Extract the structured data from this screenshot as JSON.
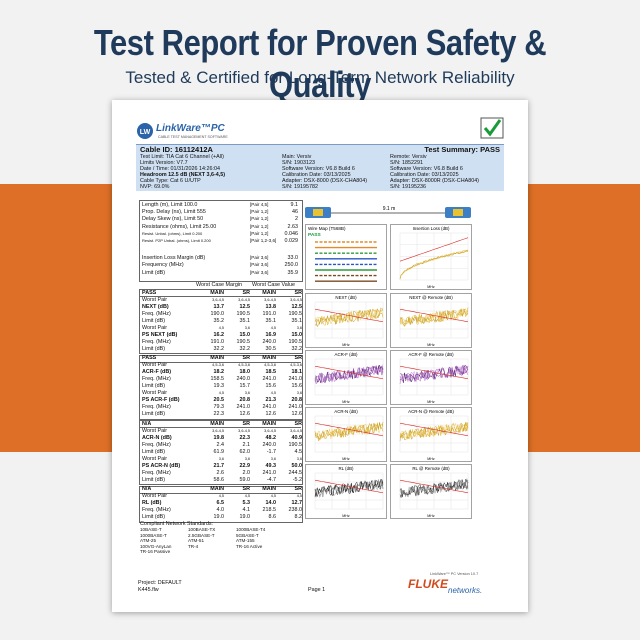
{
  "header": {
    "title": "Test Report for Proven Safety & Quality",
    "subtitle": "Tested & Certified for Long-Term Network Reliability"
  },
  "report": {
    "logo": "LinkWare™PC",
    "logo_sub": "CABLE TEST MANAGEMENT SOFTWARE",
    "cable_id": "Cable ID: 16112412A",
    "summary": "Test Summary: PASS",
    "info_left": [
      "Test Limit: TIA Cat 6 Channel (+All)",
      "Limits Version: V7.7",
      "Date / Time: 01/31/2026 14:26:04",
      "Headroom 12.5 dB (NEXT 3,6-4,5)",
      "Cable Type: Cat 6 U/UTP",
      "NVP: 69.0%"
    ],
    "info_mid": [
      "Main: Versiv",
      "S/N: 1903123",
      "Software Version: V6.8 Build 6",
      "Calibration Date: 03/13/2025",
      "Adapter: DSX-8000 (DSX-CHA804)",
      "S/N: 19195782"
    ],
    "info_right": [
      "Remote: Versiv",
      "S/N: 1852291",
      "Software Version: V6.8 Build 6",
      "Calibration Date: 03/13/2025",
      "Adapter: DSX-8000R (DSX-CHA804)",
      "S/N: 19195236"
    ],
    "measurements": [
      [
        "Length (m), Limit 100.0",
        "[Pair 4,5]",
        "9.1"
      ],
      [
        "Prop. Delay (ns), Limit 555",
        "[Pair 1,2]",
        "46"
      ],
      [
        "Delay Skew (ns), Limit 50",
        "[Pair 1,2]",
        "2"
      ],
      [
        "Resistance (ohms), Limit 25.00",
        "[Pair 1,2]",
        "2.63"
      ],
      [
        "Resist. Unbal. (ohms), Limit 0.200",
        "[Pair 1,2]",
        "0.046"
      ],
      [
        "Resist. P2P Unbal. (ohms), Limit 0.200",
        "[Pair 1,2-3,6]",
        "0.029"
      ],
      [
        "Insertion Loss Margin (dB)",
        "[Pair 3,6]",
        "33.0"
      ],
      [
        "Frequency (MHz)",
        "[Pair 3,6]",
        "250.0"
      ],
      [
        "Limit (dB)",
        "[Pair 3,6]",
        "35.9"
      ]
    ],
    "worst_case_header": [
      "Worst Case Margin",
      "Worst Case Value"
    ],
    "blocks": [
      [
        [
          "PASS",
          "MAIN",
          "SR",
          "MAIN",
          "SR"
        ],
        [
          "Worst Pair",
          "3,6-4,5",
          "3,6-4,5",
          "3,6-4,5",
          "3,6-4,5"
        ],
        [
          "NEXT (dB)",
          "13.7",
          "12.5",
          "13.8",
          "12.5"
        ],
        [
          "Freq. (MHz)",
          "190.0",
          "190.5",
          "191.0",
          "190.5"
        ],
        [
          "Limit (dB)",
          "35.2",
          "35.1",
          "35.1",
          "35.1"
        ],
        [
          "Worst Pair",
          "4,5",
          "3,6",
          "4,5",
          "3,6"
        ],
        [
          "PS NEXT (dB)",
          "16.2",
          "15.0",
          "16.9",
          "15.0"
        ],
        [
          "Freq. (MHz)",
          "191.0",
          "190.5",
          "240.0",
          "190.5"
        ],
        [
          "Limit (dB)",
          "32.2",
          "32.2",
          "30.5",
          "32.2"
        ]
      ],
      [
        [
          "PASS",
          "MAIN",
          "SR",
          "MAIN",
          "SR"
        ],
        [
          "Worst Pair",
          "4,5-3,6",
          "4,5-3,6",
          "4,5-3,6",
          "4,5-3,6"
        ],
        [
          "ACR-F (dB)",
          "18.2",
          "18.0",
          "18.5",
          "18.1"
        ],
        [
          "Freq. (MHz)",
          "158.5",
          "240.0",
          "241.0",
          "241.0"
        ],
        [
          "Limit (dB)",
          "19.3",
          "15.7",
          "15.6",
          "15.6"
        ],
        [
          "Worst Pair",
          "4,5",
          "3,6",
          "4,5",
          "3,6"
        ],
        [
          "PS ACR-F (dB)",
          "20.5",
          "20.8",
          "21.3",
          "20.8"
        ],
        [
          "Freq. (MHz)",
          "79.3",
          "241.0",
          "241.0",
          "241.0"
        ],
        [
          "Limit (dB)",
          "22.3",
          "12.6",
          "12.6",
          "12.6"
        ]
      ],
      [
        [
          "N/A",
          "MAIN",
          "SR",
          "MAIN",
          "SR"
        ],
        [
          "Worst Pair",
          "3,6-4,5",
          "3,6-4,5",
          "3,6-4,5",
          "3,6-4,5"
        ],
        [
          "ACR-N (dB)",
          "19.8",
          "22.3",
          "48.2",
          "40.9"
        ],
        [
          "Freq. (MHz)",
          "2.4",
          "2.1",
          "240.0",
          "190.5"
        ],
        [
          "Limit (dB)",
          "61.9",
          "62.0",
          "-1.7",
          "4.5"
        ],
        [
          "Worst Pair",
          "3,6",
          "3,6",
          "3,6",
          "3,6"
        ],
        [
          "PS ACR-N (dB)",
          "21.7",
          "22.9",
          "49.3",
          "50.0"
        ],
        [
          "Freq. (MHz)",
          "2.6",
          "2.0",
          "241.0",
          "244.5"
        ],
        [
          "Limit (dB)",
          "58.6",
          "59.0",
          "-4.7",
          "-5.2"
        ]
      ],
      [
        [
          "N/A",
          "MAIN",
          "SR",
          "MAIN",
          "SR"
        ],
        [
          "Worst Pair",
          "4,5",
          "4,5",
          "4,5",
          "4,5"
        ],
        [
          "RL (dB)",
          "6.5",
          "5.3",
          "14.0",
          "12.7"
        ],
        [
          "Freq. (MHz)",
          "4.0",
          "4.1",
          "218.5",
          "238.0"
        ],
        [
          "Limit (dB)",
          "19.0",
          "19.0",
          "8.6",
          "8.2"
        ]
      ]
    ],
    "length_label": "9.1 m",
    "wire_map_title": "Wire Map (T568B)",
    "wire_map_status": "PASS",
    "il_title": "Insertion Loss (dB)",
    "graph_titles": [
      "NEXT (dB)",
      "NEXT @ Remote (dB)",
      "ACR-F (dB)",
      "ACR-F @ Remote (dB)",
      "ACR-N (dB)",
      "ACR-N @ Remote (dB)",
      "RL (dB)",
      "RL @ Remote (dB)"
    ],
    "axis_unit": "MHz",
    "standards_title": "Compliant Network Standards:",
    "standards": [
      "10BASE-T",
      "100BASE-TX",
      "1000BASE-T4",
      "1000BASE-T",
      "2.5GBASE-T",
      "5GBASE-T",
      "ATM-25",
      "ATM-51",
      "ATM-155",
      "100VG-AnyLan",
      "TR-4",
      "TR-16 Active",
      "TR-16 Passive"
    ],
    "version": "LinkWare™ PC Version 10.7",
    "project": "Project: DEFAULT",
    "file": "K445.flw",
    "page": "Page 1",
    "brand": "FLUKE",
    "brand_sub": "networks."
  }
}
